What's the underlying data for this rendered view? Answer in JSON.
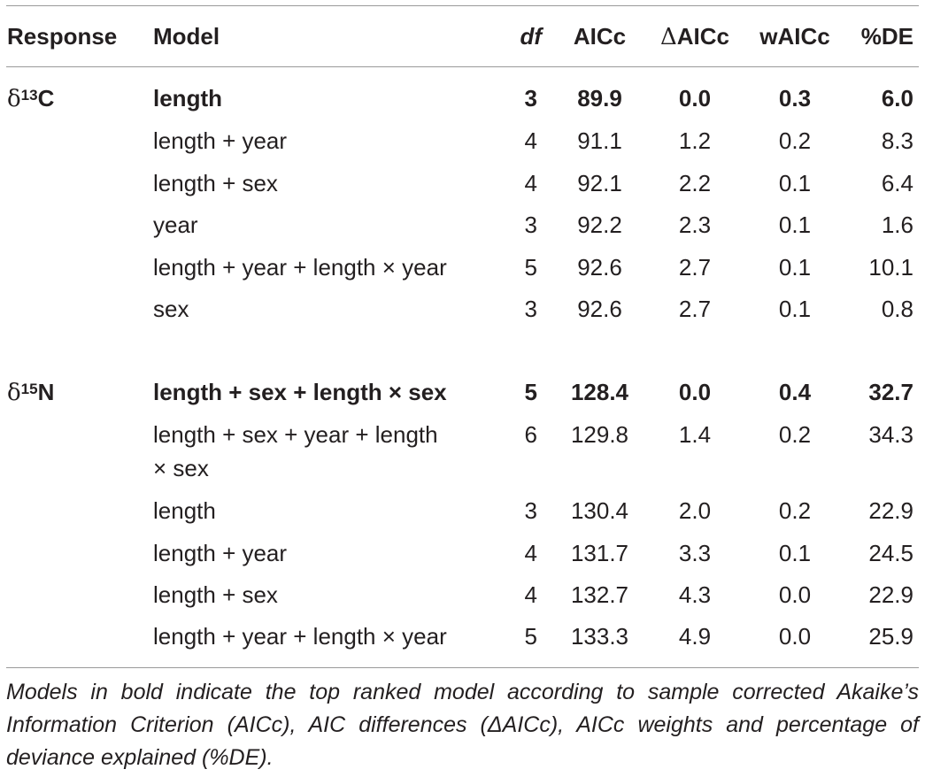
{
  "table": {
    "headers": {
      "response": "Response",
      "model": "Model",
      "df": "df",
      "aicc": "AICc",
      "delta_aicc": "ΔAICc",
      "waicc": "wAICc",
      "pct_de": "%DE"
    },
    "groups": [
      {
        "response_symbol": "δ",
        "response_sup": "13",
        "response_element": "C",
        "rows": [
          {
            "model": "length",
            "df": "3",
            "aicc": "89.9",
            "delta": "0.0",
            "w": "0.3",
            "de": "6.0",
            "bold": true
          },
          {
            "model": "length + year",
            "df": "4",
            "aicc": "91.1",
            "delta": "1.2",
            "w": "0.2",
            "de": "8.3",
            "bold": false
          },
          {
            "model": "length + sex",
            "df": "4",
            "aicc": "92.1",
            "delta": "2.2",
            "w": "0.1",
            "de": "6.4",
            "bold": false
          },
          {
            "model": "year",
            "df": "3",
            "aicc": "92.2",
            "delta": "2.3",
            "w": "0.1",
            "de": "1.6",
            "bold": false
          },
          {
            "model": "length + year + length × year",
            "df": "5",
            "aicc": "92.6",
            "delta": "2.7",
            "w": "0.1",
            "de": "10.1",
            "bold": false
          },
          {
            "model": "sex",
            "df": "3",
            "aicc": "92.6",
            "delta": "2.7",
            "w": "0.1",
            "de": "0.8",
            "bold": false
          }
        ]
      },
      {
        "response_symbol": "δ",
        "response_sup": "15",
        "response_element": "N",
        "rows": [
          {
            "model": "length + sex + length × sex",
            "df": "5",
            "aicc": "128.4",
            "delta": "0.0",
            "w": "0.4",
            "de": "32.7",
            "bold": true
          },
          {
            "model_line1": "length + sex + year + length",
            "model_line2": "× sex",
            "df": "6",
            "aicc": "129.8",
            "delta": "1.4",
            "w": "0.2",
            "de": "34.3",
            "bold": false
          },
          {
            "model": "length",
            "df": "3",
            "aicc": "130.4",
            "delta": "2.0",
            "w": "0.2",
            "de": "22.9",
            "bold": false
          },
          {
            "model": "length + year",
            "df": "4",
            "aicc": "131.7",
            "delta": "3.3",
            "w": "0.1",
            "de": "24.5",
            "bold": false
          },
          {
            "model": "length + sex",
            "df": "4",
            "aicc": "132.7",
            "delta": "4.3",
            "w": "0.0",
            "de": "22.9",
            "bold": false
          },
          {
            "model": "length + year + length × year",
            "df": "5",
            "aicc": "133.3",
            "delta": "4.9",
            "w": "0.0",
            "de": "25.9",
            "bold": false
          }
        ]
      }
    ],
    "caption": "Models in bold indicate the top ranked model according to sample corrected Akaike’s Information Criterion (AICc), AIC differences (ΔAICc), AICc weights and percentage of deviance explained (%DE)."
  }
}
